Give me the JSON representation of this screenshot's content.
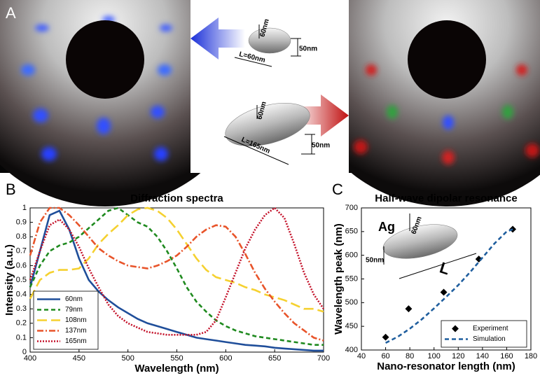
{
  "panel_a": {
    "label": "A",
    "annotations": [
      "60nm",
      "50nm",
      "L=60nm",
      "60nm",
      "50nm",
      "L=165nm"
    ]
  },
  "chart_data": [
    {
      "type": "line",
      "panel_label": "B",
      "title": "Diffraction spectra",
      "x_label": "Wavelength (nm)",
      "y_label": "Intensity (a.u.)",
      "x": [
        400,
        410,
        420,
        430,
        440,
        450,
        460,
        470,
        480,
        490,
        500,
        510,
        520,
        530,
        540,
        550,
        560,
        570,
        580,
        590,
        600,
        610,
        620,
        630,
        640,
        650,
        660,
        670,
        680,
        690,
        700
      ],
      "series": [
        {
          "name": "60nm",
          "color": "#1f4e9a",
          "style": "solid",
          "values": [
            0.45,
            0.7,
            0.95,
            0.98,
            0.85,
            0.65,
            0.5,
            0.42,
            0.36,
            0.31,
            0.27,
            0.23,
            0.2,
            0.18,
            0.16,
            0.14,
            0.12,
            0.1,
            0.09,
            0.08,
            0.07,
            0.06,
            0.05,
            0.045,
            0.04,
            0.03,
            0.025,
            0.02,
            0.015,
            0.01,
            0.01
          ]
        },
        {
          "name": "79nm",
          "color": "#1f8a1f",
          "style": "dashed",
          "values": [
            0.45,
            0.6,
            0.7,
            0.74,
            0.76,
            0.8,
            0.86,
            0.92,
            0.98,
            1.0,
            0.95,
            0.9,
            0.87,
            0.8,
            0.7,
            0.58,
            0.45,
            0.35,
            0.28,
            0.22,
            0.18,
            0.15,
            0.13,
            0.11,
            0.1,
            0.09,
            0.08,
            0.07,
            0.06,
            0.05,
            0.05
          ]
        },
        {
          "name": "108nm",
          "color": "#f5d130",
          "style": "longdash",
          "values": [
            0.37,
            0.5,
            0.55,
            0.57,
            0.57,
            0.58,
            0.65,
            0.75,
            0.82,
            0.88,
            0.95,
            0.99,
            1.0,
            0.98,
            0.93,
            0.85,
            0.75,
            0.65,
            0.57,
            0.52,
            0.5,
            0.48,
            0.45,
            0.43,
            0.4,
            0.38,
            0.36,
            0.33,
            0.3,
            0.3,
            0.28
          ]
        },
        {
          "name": "137nm",
          "color": "#e8542a",
          "style": "dashdot",
          "values": [
            0.67,
            0.9,
            1.0,
            1.0,
            0.95,
            0.88,
            0.8,
            0.72,
            0.67,
            0.63,
            0.6,
            0.59,
            0.58,
            0.6,
            0.63,
            0.67,
            0.73,
            0.8,
            0.85,
            0.88,
            0.87,
            0.8,
            0.68,
            0.55,
            0.44,
            0.35,
            0.27,
            0.2,
            0.15,
            0.1,
            0.08
          ]
        },
        {
          "name": "165nm",
          "color": "#c4122a",
          "style": "dotted",
          "values": [
            0.5,
            0.7,
            0.88,
            0.92,
            0.85,
            0.73,
            0.58,
            0.45,
            0.33,
            0.25,
            0.2,
            0.17,
            0.14,
            0.13,
            0.12,
            0.12,
            0.12,
            0.12,
            0.14,
            0.22,
            0.38,
            0.55,
            0.72,
            0.85,
            0.95,
            1.0,
            0.93,
            0.75,
            0.55,
            0.4,
            0.3
          ]
        }
      ],
      "xlim": [
        400,
        700
      ],
      "xticks": [
        400,
        450,
        500,
        550,
        600,
        650,
        700
      ],
      "ylim": [
        0,
        1
      ],
      "yticks": [
        0,
        0.1,
        0.2,
        0.3,
        0.4,
        0.5,
        0.6,
        0.7,
        0.8,
        0.9,
        1
      ],
      "legend": "lower left"
    },
    {
      "type": "scatter",
      "panel_label": "C",
      "title": "Half-wave dipolar resonance",
      "x_label": "Nano-resonator length (nm)",
      "y_label": "Wavelength peak (nm)",
      "annotations": [
        "Ag",
        "60nm",
        "50nm",
        "L"
      ],
      "series": [
        {
          "name": "Experiment",
          "type": "scatter",
          "color": "#000000",
          "x": [
            60,
            79,
            108,
            137,
            165
          ],
          "values": [
            427,
            487,
            522,
            592,
            655
          ]
        },
        {
          "name": "Simulation",
          "type": "line",
          "style": "dashed",
          "color": "#1f5e9e",
          "x": [
            60,
            70,
            80,
            90,
            100,
            110,
            120,
            130,
            140,
            150,
            160,
            165
          ],
          "values": [
            415,
            428,
            445,
            465,
            488,
            512,
            537,
            565,
            595,
            625,
            650,
            655
          ]
        }
      ],
      "xlim": [
        40,
        180
      ],
      "xticks": [
        40,
        60,
        80,
        100,
        120,
        140,
        160,
        180
      ],
      "ylim": [
        400,
        700
      ],
      "yticks": [
        400,
        450,
        500,
        550,
        600,
        650,
        700
      ],
      "legend": "lower right"
    }
  ]
}
